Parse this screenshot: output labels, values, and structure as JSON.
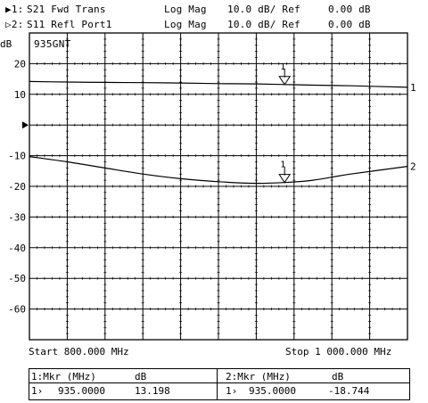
{
  "header": {
    "line1": {
      "marker": "▶1:",
      "param": "S21 Fwd Trans",
      "format": "Log Mag",
      "scale": "10.0 dB/ Ref",
      "ref": "0.00 dB"
    },
    "line2": {
      "marker": "▷2:",
      "param": "S11 Refl Port1",
      "format": "Log Mag",
      "scale": "10.0 dB/ Ref",
      "ref": "0.00 dB"
    }
  },
  "plot": {
    "y_unit": "dB",
    "trace_label": "935GNT",
    "start": "Start 800.000 MHz",
    "stop": "Stop 1 000.000 MHz",
    "ref_arrow": "▶"
  },
  "markers_table": {
    "m1": {
      "header_label": "1:Mkr (MHz)",
      "header_unit": "dB",
      "index": "1›",
      "freq": "935.0000",
      "value": "13.198"
    },
    "m2": {
      "header_label": "2:Mkr (MHz)",
      "header_unit": "dB",
      "index": "1›",
      "freq": "935.0000",
      "value": "-18.744"
    }
  },
  "chart_data": {
    "type": "line",
    "xlabel": "",
    "ylabel": "dB",
    "xlim": [
      800,
      1000
    ],
    "ylim": [
      -70,
      30
    ],
    "y_ticks": [
      20,
      10,
      0,
      -10,
      -20,
      -30,
      -40,
      -50,
      -60
    ],
    "y_tick_labels": [
      "20",
      "10",
      "",
      "-10",
      "-20",
      "-30",
      "-40",
      "-50",
      "-60"
    ],
    "grid": true,
    "series": [
      {
        "name": "1",
        "x": [
          800,
          820,
          840,
          860,
          880,
          900,
          920,
          935,
          950,
          970,
          1000
        ],
        "y": [
          14.2,
          14.0,
          13.9,
          13.8,
          13.7,
          13.5,
          13.4,
          13.198,
          13.0,
          12.8,
          12.3
        ]
      },
      {
        "name": "2",
        "x": [
          800,
          820,
          840,
          860,
          880,
          900,
          920,
          935,
          950,
          970,
          1000
        ],
        "y": [
          -10.3,
          -12.0,
          -14.0,
          -16.0,
          -17.5,
          -18.5,
          -19.0,
          -18.744,
          -18.0,
          -16.0,
          -13.5
        ]
      }
    ],
    "markers": [
      {
        "series": "1",
        "label": "1",
        "x": 935,
        "y": 13.198
      },
      {
        "series": "2",
        "label": "1",
        "x": 935,
        "y": -18.744
      }
    ]
  }
}
